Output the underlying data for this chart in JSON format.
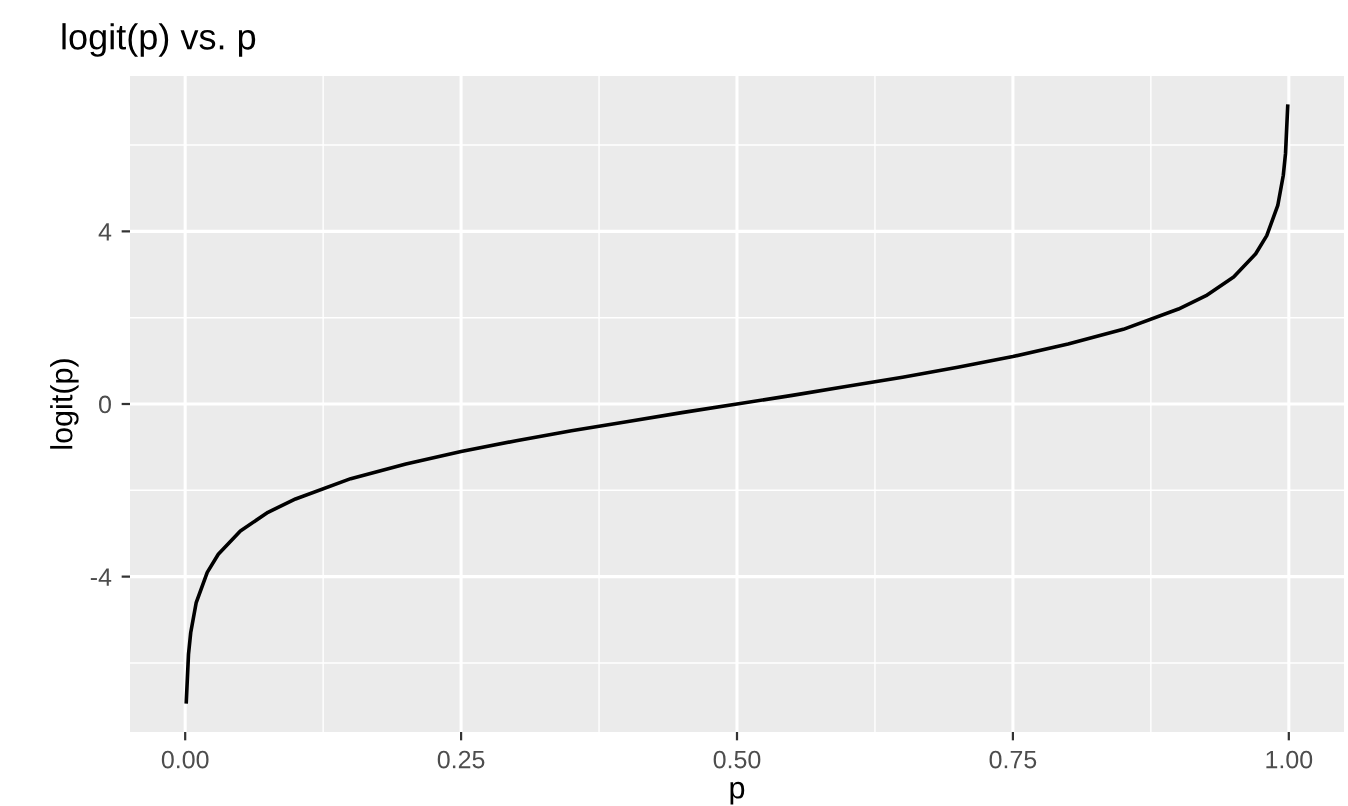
{
  "chart_data": {
    "type": "line",
    "title": "logit(p) vs. p",
    "xlabel": "p",
    "ylabel": "logit(p)",
    "x": [
      0.001,
      0.003,
      0.005,
      0.01,
      0.02,
      0.03,
      0.05,
      0.075,
      0.1,
      0.15,
      0.2,
      0.25,
      0.3,
      0.35,
      0.4,
      0.45,
      0.5,
      0.55,
      0.6,
      0.65,
      0.7,
      0.75,
      0.8,
      0.85,
      0.9,
      0.925,
      0.95,
      0.97,
      0.98,
      0.99,
      0.995,
      0.997,
      0.999
    ],
    "series": [
      {
        "color": "#000000",
        "values": [
          -6.9,
          -5.8,
          -5.3,
          -4.6,
          -3.9,
          -3.48,
          -2.94,
          -2.51,
          -2.2,
          -1.73,
          -1.39,
          -1.1,
          -0.85,
          -0.62,
          -0.41,
          -0.2,
          0,
          0.2,
          0.41,
          0.62,
          0.85,
          1.1,
          1.39,
          1.73,
          2.2,
          2.51,
          2.94,
          3.48,
          3.9,
          4.6,
          5.3,
          5.8,
          6.9
        ]
      }
    ],
    "xlim": [
      -0.05,
      1.05
    ],
    "ylim": [
      -7.6,
      7.6
    ],
    "xticks": [
      {
        "value": 0,
        "label": "0.00"
      },
      {
        "value": 0.25,
        "label": "0.25"
      },
      {
        "value": 0.5,
        "label": "0.50"
      },
      {
        "value": 0.75,
        "label": "0.75"
      },
      {
        "value": 1,
        "label": "1.00"
      }
    ],
    "yticks": [
      -4,
      0,
      4
    ],
    "grid": true,
    "marker": "none",
    "line_style": "solid"
  }
}
